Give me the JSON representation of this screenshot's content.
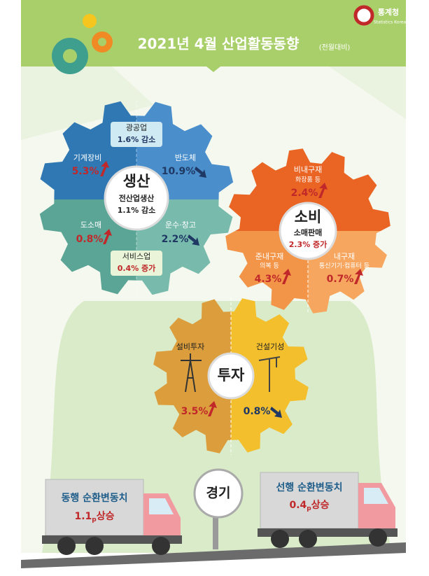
{
  "logo": {
    "name": "통계청",
    "english": "Statistics Korea"
  },
  "header": {
    "title": "2021년 4월 산업활동동향",
    "subtitle": "(전월대비)"
  },
  "production": {
    "title": "생산",
    "main_label": "전산업생산",
    "main_value": "1.1% 감소",
    "items": [
      {
        "label": "광공업",
        "value": "1.6% 감소"
      },
      {
        "label": "기계장비",
        "value": "5.3%"
      },
      {
        "label": "반도체",
        "value": "10.9%"
      },
      {
        "label": "도소매",
        "value": "0.8%"
      },
      {
        "label": "운수·창고",
        "value": "2.2%"
      },
      {
        "label": "서비스업",
        "value": "0.4% 증가"
      }
    ]
  },
  "consumption": {
    "title": "소비",
    "main_label": "소매판매",
    "main_value": "2.3% 증가",
    "items": [
      {
        "label": "비내구재",
        "detail": "화장품 등",
        "value": "2.4%"
      },
      {
        "label": "준내구재",
        "detail": "의복 등",
        "value": "4.3%"
      },
      {
        "label": "내구재",
        "detail": "통신기기·컴퓨터 등",
        "value": "0.7%"
      }
    ]
  },
  "investment": {
    "title": "투자",
    "items": [
      {
        "label": "설비투자",
        "value": "3.5%"
      },
      {
        "label": "건설기성",
        "value": "0.8%"
      }
    ]
  },
  "economy": {
    "title": "경기",
    "items": [
      {
        "label": "동행 순환변동치",
        "value": "1.1",
        "sub": "p",
        "suffix": "상승"
      },
      {
        "label": "선행 순환변동치",
        "value": "0.4",
        "sub": "p",
        "suffix": "상승"
      }
    ]
  }
}
